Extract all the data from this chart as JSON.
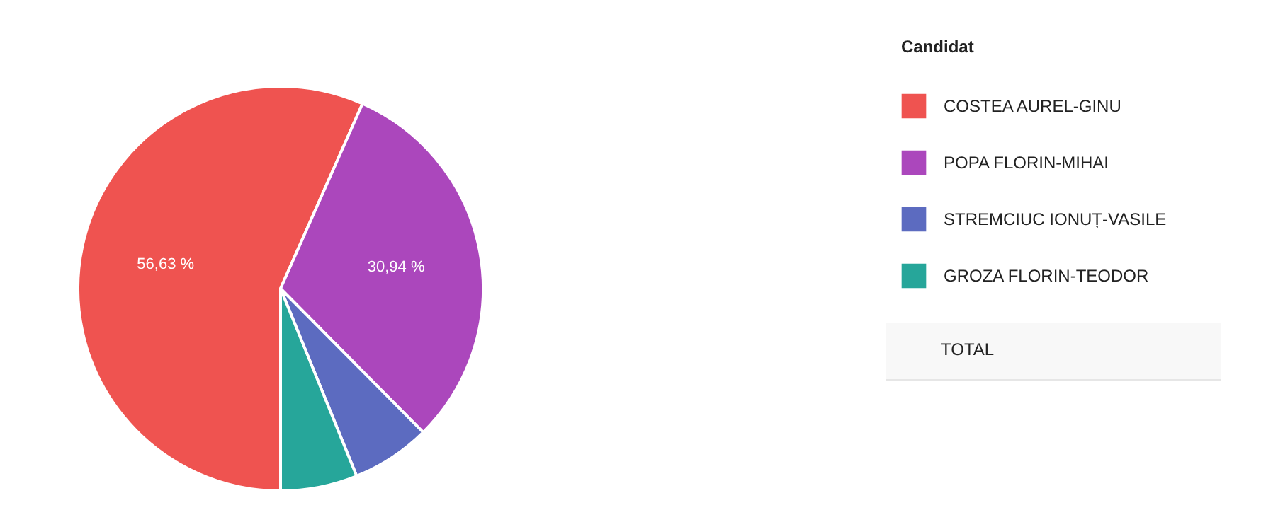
{
  "chart_data": {
    "type": "pie",
    "legend_title": "Candidat",
    "categories": [
      "COSTEA AUREL-GINU",
      "POPA FLORIN-MIHAI",
      "STREMCIUC IONUȚ-VASILE",
      "GROZA FLORIN-TEODOR"
    ],
    "values": [
      56.63,
      30.94,
      6.3,
      6.13
    ],
    "value_labels": [
      "56,63 %",
      "30,94 %",
      null,
      null
    ],
    "colors": [
      "#ef5350",
      "#ab47bc",
      "#5c6bc0",
      "#26a69a"
    ],
    "legend": "right",
    "annotations": [
      "TOTAL"
    ]
  }
}
